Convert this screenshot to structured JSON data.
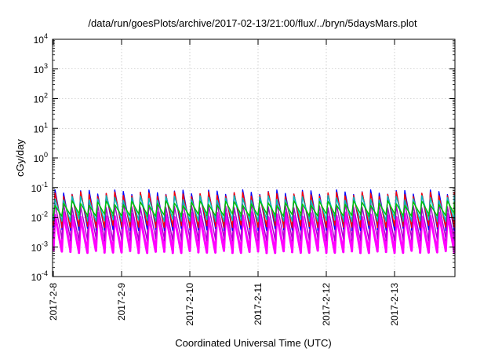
{
  "chart_data": {
    "type": "line",
    "title": "/data/run/goesPlots/archive/2017-02-13/21:00/flux/../bryn/5daysMars.plot",
    "xlabel": "Coordinated Universal Time (UTC)",
    "ylabel": "cGy/day",
    "y_scale": "log",
    "ylim": [
      0.0001,
      10000
    ],
    "xlim": [
      "2017-02-08T00:00",
      "2017-02-13T21:00"
    ],
    "x_tick_labels": [
      "2017-2-8",
      "2017-2-9",
      "2017-2-10",
      "2017-2-11",
      "2017-2-12",
      "2017-2-13"
    ],
    "y_ticks": [
      {
        "base": "10",
        "exp": "-4",
        "value": 0.0001
      },
      {
        "base": "10",
        "exp": "-3",
        "value": 0.001
      },
      {
        "base": "10",
        "exp": "-2",
        "value": 0.01
      },
      {
        "base": "10",
        "exp": "-1",
        "value": 0.1
      },
      {
        "base": "10",
        "exp": "0",
        "value": 1
      },
      {
        "base": "10",
        "exp": "1",
        "value": 10
      },
      {
        "base": "10",
        "exp": "2",
        "value": 100
      },
      {
        "base": "10",
        "exp": "3",
        "value": 1000
      },
      {
        "base": "10",
        "exp": "4",
        "value": 10000
      }
    ],
    "grid": true,
    "legend": "none",
    "oscillation_cycles_per_day": 8,
    "series": [
      {
        "color": "#ff00ff",
        "peak": 0.012,
        "trough": 0.0007
      },
      {
        "color": "#aa00cc",
        "peak": 0.025,
        "trough": 0.0018
      },
      {
        "color": "#0000ff",
        "peak": 0.07,
        "trough": 0.004
      },
      {
        "color": "#ff0000",
        "peak": 0.06,
        "trough": 0.005
      },
      {
        "color": "#00bbbb",
        "peak": 0.045,
        "trough": 0.008
      },
      {
        "color": "#00c000",
        "peak": 0.03,
        "trough": 0.012
      }
    ]
  }
}
